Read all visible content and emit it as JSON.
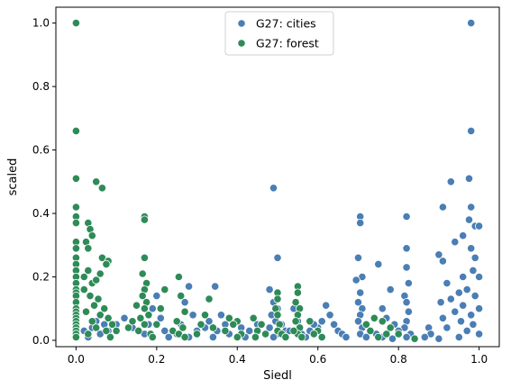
{
  "chart_data": {
    "type": "scatter",
    "xlabel": "Siedl",
    "ylabel": "scaled",
    "xlim": [
      -0.05,
      1.05
    ],
    "ylim": [
      -0.02,
      1.05
    ],
    "xticks": [
      0.0,
      0.2,
      0.4,
      0.6,
      0.8,
      1.0
    ],
    "yticks": [
      0.0,
      0.2,
      0.4,
      0.6,
      0.8,
      1.0
    ],
    "xtick_labels": [
      "0.0",
      "0.2",
      "0.4",
      "0.6",
      "0.8",
      "1.0"
    ],
    "ytick_labels": [
      "0.0",
      "0.2",
      "0.4",
      "0.6",
      "0.8",
      "1.0"
    ],
    "grid": false,
    "legend_position": "top-center",
    "series": [
      {
        "name": "G27: cities",
        "color": "#4a7eb4",
        "points": [
          [
            0.98,
            1.0
          ],
          [
            0.98,
            0.66
          ],
          [
            0.975,
            0.51
          ],
          [
            0.93,
            0.5
          ],
          [
            0.91,
            0.42
          ],
          [
            0.98,
            0.42
          ],
          [
            0.975,
            0.38
          ],
          [
            0.99,
            0.36
          ],
          [
            1.0,
            0.36
          ],
          [
            0.96,
            0.33
          ],
          [
            0.94,
            0.31
          ],
          [
            0.98,
            0.29
          ],
          [
            0.9,
            0.27
          ],
          [
            0.99,
            0.26
          ],
          [
            0.91,
            0.25
          ],
          [
            0.985,
            0.22
          ],
          [
            0.96,
            0.2
          ],
          [
            1.0,
            0.2
          ],
          [
            0.92,
            0.18
          ],
          [
            0.97,
            0.16
          ],
          [
            0.95,
            0.15
          ],
          [
            0.99,
            0.14
          ],
          [
            0.93,
            0.13
          ],
          [
            0.905,
            0.12
          ],
          [
            0.96,
            0.11
          ],
          [
            1.0,
            0.1
          ],
          [
            0.94,
            0.09
          ],
          [
            0.98,
            0.08
          ],
          [
            0.91,
            0.07
          ],
          [
            0.955,
            0.06
          ],
          [
            0.985,
            0.05
          ],
          [
            0.92,
            0.04
          ],
          [
            0.97,
            0.03
          ],
          [
            1.0,
            0.02
          ],
          [
            0.95,
            0.01
          ],
          [
            0.9,
            0.005
          ],
          [
            0.875,
            0.04
          ],
          [
            0.88,
            0.02
          ],
          [
            0.865,
            0.01
          ],
          [
            0.49,
            0.48
          ],
          [
            0.5,
            0.26
          ],
          [
            0.48,
            0.16
          ],
          [
            0.49,
            0.12
          ],
          [
            0.5,
            0.1
          ],
          [
            0.485,
            0.08
          ],
          [
            0.495,
            0.06
          ],
          [
            0.48,
            0.04
          ],
          [
            0.5,
            0.02
          ],
          [
            0.49,
            0.01
          ],
          [
            0.51,
            0.05
          ],
          [
            0.52,
            0.03
          ],
          [
            0.705,
            0.39
          ],
          [
            0.705,
            0.37
          ],
          [
            0.7,
            0.26
          ],
          [
            0.71,
            0.2
          ],
          [
            0.695,
            0.19
          ],
          [
            0.705,
            0.15
          ],
          [
            0.7,
            0.12
          ],
          [
            0.71,
            0.1
          ],
          [
            0.705,
            0.08
          ],
          [
            0.7,
            0.06
          ],
          [
            0.71,
            0.04
          ],
          [
            0.705,
            0.02
          ],
          [
            0.72,
            0.01
          ],
          [
            0.73,
            0.03
          ],
          [
            0.82,
            0.39
          ],
          [
            0.82,
            0.29
          ],
          [
            0.82,
            0.23
          ],
          [
            0.825,
            0.18
          ],
          [
            0.815,
            0.14
          ],
          [
            0.82,
            0.12
          ],
          [
            0.825,
            0.09
          ],
          [
            0.82,
            0.06
          ],
          [
            0.815,
            0.04
          ],
          [
            0.83,
            0.02
          ],
          [
            0.82,
            0.01
          ],
          [
            0.75,
            0.24
          ],
          [
            0.78,
            0.16
          ],
          [
            0.76,
            0.1
          ],
          [
            0.77,
            0.07
          ],
          [
            0.79,
            0.05
          ],
          [
            0.8,
            0.03
          ],
          [
            0.745,
            0.02
          ],
          [
            0.76,
            0.01
          ],
          [
            0.785,
            0.005
          ],
          [
            0.62,
            0.11
          ],
          [
            0.63,
            0.08
          ],
          [
            0.61,
            0.06
          ],
          [
            0.64,
            0.05
          ],
          [
            0.6,
            0.04
          ],
          [
            0.65,
            0.03
          ],
          [
            0.66,
            0.02
          ],
          [
            0.58,
            0.03
          ],
          [
            0.57,
            0.01
          ],
          [
            0.59,
            0.05
          ],
          [
            0.67,
            0.01
          ],
          [
            0.345,
            0.17
          ],
          [
            0.36,
            0.08
          ],
          [
            0.33,
            0.06
          ],
          [
            0.37,
            0.05
          ],
          [
            0.35,
            0.03
          ],
          [
            0.38,
            0.02
          ],
          [
            0.34,
            0.01
          ],
          [
            0.32,
            0.04
          ],
          [
            0.2,
            0.14
          ],
          [
            0.19,
            0.1
          ],
          [
            0.21,
            0.07
          ],
          [
            0.18,
            0.05
          ],
          [
            0.22,
            0.03
          ],
          [
            0.17,
            0.02
          ],
          [
            0.23,
            0.01
          ],
          [
            0.28,
            0.17
          ],
          [
            0.27,
            0.12
          ],
          [
            0.29,
            0.08
          ],
          [
            0.26,
            0.05
          ],
          [
            0.3,
            0.03
          ],
          [
            0.25,
            0.02
          ],
          [
            0.28,
            0.01
          ],
          [
            0.12,
            0.07
          ],
          [
            0.1,
            0.05
          ],
          [
            0.14,
            0.04
          ],
          [
            0.08,
            0.03
          ],
          [
            0.06,
            0.02
          ],
          [
            0.04,
            0.04
          ],
          [
            0.02,
            0.03
          ],
          [
            0.0,
            0.02
          ],
          [
            0.03,
            0.01
          ],
          [
            0.05,
            0.06
          ],
          [
            0.07,
            0.05
          ],
          [
            0.54,
            0.1
          ],
          [
            0.55,
            0.06
          ],
          [
            0.53,
            0.03
          ],
          [
            0.56,
            0.02
          ],
          [
            0.45,
            0.05
          ],
          [
            0.43,
            0.03
          ],
          [
            0.41,
            0.04
          ],
          [
            0.42,
            0.01
          ]
        ]
      },
      {
        "name": "G27: forest",
        "color": "#2e8b57",
        "points": [
          [
            0.0,
            1.0
          ],
          [
            0.0,
            0.66
          ],
          [
            0.0,
            0.51
          ],
          [
            0.0,
            0.42
          ],
          [
            0.0,
            0.39
          ],
          [
            0.0,
            0.37
          ],
          [
            0.0,
            0.31
          ],
          [
            0.0,
            0.29
          ],
          [
            0.0,
            0.26
          ],
          [
            0.0,
            0.24
          ],
          [
            0.0,
            0.22
          ],
          [
            0.0,
            0.2
          ],
          [
            0.0,
            0.18
          ],
          [
            0.0,
            0.16
          ],
          [
            0.0,
            0.15
          ],
          [
            0.0,
            0.14
          ],
          [
            0.0,
            0.12
          ],
          [
            0.0,
            0.1
          ],
          [
            0.0,
            0.09
          ],
          [
            0.0,
            0.08
          ],
          [
            0.0,
            0.07
          ],
          [
            0.0,
            0.06
          ],
          [
            0.0,
            0.05
          ],
          [
            0.0,
            0.04
          ],
          [
            0.0,
            0.03
          ],
          [
            0.0,
            0.02
          ],
          [
            0.0,
            0.01
          ],
          [
            0.05,
            0.5
          ],
          [
            0.065,
            0.48
          ],
          [
            0.03,
            0.37
          ],
          [
            0.035,
            0.35
          ],
          [
            0.04,
            0.33
          ],
          [
            0.025,
            0.31
          ],
          [
            0.03,
            0.29
          ],
          [
            0.065,
            0.26
          ],
          [
            0.08,
            0.25
          ],
          [
            0.075,
            0.24
          ],
          [
            0.03,
            0.22
          ],
          [
            0.06,
            0.21
          ],
          [
            0.02,
            0.2
          ],
          [
            0.04,
            0.18
          ],
          [
            0.05,
            0.19
          ],
          [
            0.02,
            0.16
          ],
          [
            0.035,
            0.14
          ],
          [
            0.055,
            0.13
          ],
          [
            0.045,
            0.11
          ],
          [
            0.07,
            0.1
          ],
          [
            0.025,
            0.09
          ],
          [
            0.06,
            0.08
          ],
          [
            0.08,
            0.07
          ],
          [
            0.04,
            0.06
          ],
          [
            0.09,
            0.05
          ],
          [
            0.05,
            0.04
          ],
          [
            0.075,
            0.03
          ],
          [
            0.03,
            0.02
          ],
          [
            0.085,
            0.01
          ],
          [
            0.1,
            0.03
          ],
          [
            0.17,
            0.39
          ],
          [
            0.17,
            0.38
          ],
          [
            0.17,
            0.26
          ],
          [
            0.165,
            0.21
          ],
          [
            0.175,
            0.18
          ],
          [
            0.17,
            0.16
          ],
          [
            0.165,
            0.14
          ],
          [
            0.175,
            0.12
          ],
          [
            0.17,
            0.1
          ],
          [
            0.18,
            0.08
          ],
          [
            0.16,
            0.07
          ],
          [
            0.17,
            0.05
          ],
          [
            0.15,
            0.11
          ],
          [
            0.14,
            0.06
          ],
          [
            0.13,
            0.04
          ],
          [
            0.155,
            0.03
          ],
          [
            0.185,
            0.02
          ],
          [
            0.19,
            0.01
          ],
          [
            0.22,
            0.16
          ],
          [
            0.21,
            0.1
          ],
          [
            0.2,
            0.05
          ],
          [
            0.255,
            0.2
          ],
          [
            0.26,
            0.14
          ],
          [
            0.27,
            0.09
          ],
          [
            0.25,
            0.06
          ],
          [
            0.265,
            0.04
          ],
          [
            0.24,
            0.03
          ],
          [
            0.255,
            0.02
          ],
          [
            0.27,
            0.01
          ],
          [
            0.33,
            0.13
          ],
          [
            0.32,
            0.08
          ],
          [
            0.31,
            0.05
          ],
          [
            0.34,
            0.04
          ],
          [
            0.3,
            0.02
          ],
          [
            0.38,
            0.07
          ],
          [
            0.4,
            0.06
          ],
          [
            0.39,
            0.05
          ],
          [
            0.37,
            0.03
          ],
          [
            0.41,
            0.02
          ],
          [
            0.4,
            0.01
          ],
          [
            0.44,
            0.07
          ],
          [
            0.46,
            0.05
          ],
          [
            0.45,
            0.03
          ],
          [
            0.47,
            0.02
          ],
          [
            0.445,
            0.01
          ],
          [
            0.5,
            0.15
          ],
          [
            0.5,
            0.13
          ],
          [
            0.495,
            0.1
          ],
          [
            0.5,
            0.08
          ],
          [
            0.505,
            0.05
          ],
          [
            0.5,
            0.03
          ],
          [
            0.51,
            0.02
          ],
          [
            0.52,
            0.01
          ],
          [
            0.55,
            0.17
          ],
          [
            0.55,
            0.15
          ],
          [
            0.545,
            0.12
          ],
          [
            0.555,
            0.1
          ],
          [
            0.55,
            0.08
          ],
          [
            0.545,
            0.06
          ],
          [
            0.555,
            0.04
          ],
          [
            0.55,
            0.02
          ],
          [
            0.56,
            0.01
          ],
          [
            0.54,
            0.03
          ],
          [
            0.58,
            0.06
          ],
          [
            0.6,
            0.03
          ],
          [
            0.59,
            0.02
          ],
          [
            0.61,
            0.01
          ],
          [
            0.74,
            0.07
          ],
          [
            0.76,
            0.06
          ],
          [
            0.72,
            0.05
          ],
          [
            0.78,
            0.04
          ],
          [
            0.73,
            0.03
          ],
          [
            0.77,
            0.02
          ],
          [
            0.75,
            0.01
          ],
          [
            0.8,
            0.02
          ],
          [
            0.84,
            0.005
          ]
        ]
      }
    ]
  }
}
